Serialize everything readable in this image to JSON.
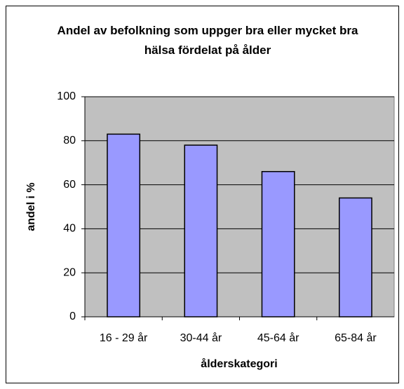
{
  "chart_data": {
    "type": "bar",
    "title": "Andel av befolkning som uppger bra eller mycket bra hälsa fördelat på ålder",
    "x_label": "ålderskategori",
    "y_label": "andel i %",
    "categories": [
      "16 - 29 år",
      "30-44 år",
      "45-64 år",
      "65-84 år"
    ],
    "values": [
      83,
      78,
      66,
      54
    ],
    "color": "#9999ff",
    "ylim": [
      0,
      100
    ],
    "yticks": [
      0,
      20,
      40,
      60,
      80,
      100
    ],
    "grid": true
  }
}
